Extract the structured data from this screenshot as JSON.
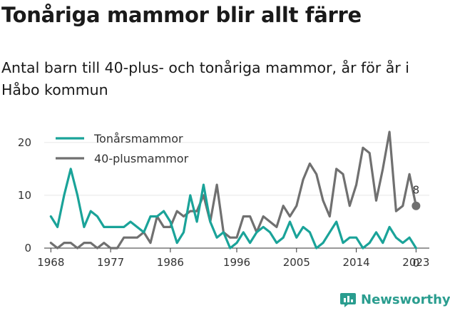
{
  "header": {
    "title": "Tonåriga mammor blir allt färre",
    "subtitle": "Antal barn till 40-plus- och tonåriga mammor, år för år i Håbo kommun"
  },
  "brand": {
    "name": "Newsworthy",
    "logo_icon": "bar-chart-icon",
    "color": "#2a9d8f"
  },
  "chart_data": {
    "type": "line",
    "x": [
      1968,
      1969,
      1970,
      1971,
      1972,
      1973,
      1974,
      1975,
      1976,
      1977,
      1978,
      1979,
      1980,
      1981,
      1982,
      1983,
      1984,
      1985,
      1986,
      1987,
      1988,
      1989,
      1990,
      1991,
      1992,
      1993,
      1994,
      1995,
      1996,
      1997,
      1998,
      1999,
      2000,
      2001,
      2002,
      2003,
      2004,
      2005,
      2006,
      2007,
      2008,
      2009,
      2010,
      2011,
      2012,
      2013,
      2014,
      2015,
      2016,
      2017,
      2018,
      2019,
      2020,
      2021,
      2022,
      2023
    ],
    "x_ticks": [
      "1968",
      "1977",
      "1986",
      "1996",
      "2005",
      "2014",
      "2023"
    ],
    "x_tick_values": [
      1968,
      1977,
      1986,
      1996,
      2005,
      2014,
      2023
    ],
    "y_ticks": [
      "0",
      "10",
      "20"
    ],
    "y_tick_values": [
      0,
      10,
      20
    ],
    "ylim": [
      0,
      22
    ],
    "xlim": [
      1967,
      2025
    ],
    "grid": "horizontal",
    "legend_position": "top-left",
    "series": [
      {
        "name": "Tonårsmammor",
        "color": "#1aa399",
        "values": [
          6,
          4,
          10,
          15,
          10,
          4,
          7,
          6,
          4,
          4,
          4,
          4,
          5,
          4,
          3,
          6,
          6,
          7,
          5,
          1,
          3,
          10,
          5,
          12,
          5,
          2,
          3,
          0,
          1,
          3,
          1,
          3,
          4,
          3,
          1,
          2,
          5,
          2,
          4,
          3,
          0,
          1,
          3,
          5,
          1,
          2,
          2,
          0,
          1,
          3,
          1,
          4,
          2,
          1,
          2,
          0
        ],
        "end_label": "0"
      },
      {
        "name": "40-plusmammor",
        "color": "#707070",
        "values": [
          1,
          0,
          1,
          1,
          0,
          1,
          1,
          0,
          1,
          0,
          0,
          2,
          2,
          2,
          3,
          1,
          6,
          4,
          4,
          7,
          6,
          7,
          7,
          10,
          5,
          12,
          3,
          2,
          2,
          6,
          6,
          3,
          6,
          5,
          4,
          8,
          6,
          8,
          13,
          16,
          14,
          9,
          6,
          15,
          14,
          8,
          12,
          19,
          18,
          9,
          15,
          22,
          7,
          8,
          14,
          8
        ],
        "end_label": "8"
      }
    ]
  }
}
